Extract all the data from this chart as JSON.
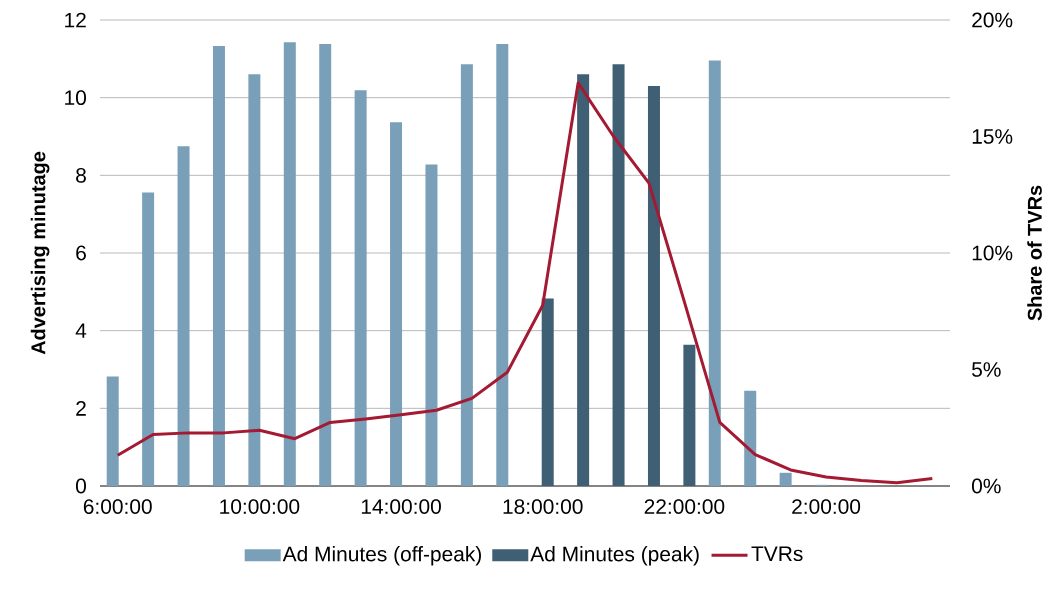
{
  "chart_data": {
    "type": "bar",
    "categories": [
      "6:00:00",
      null,
      null,
      null,
      "10:00:00",
      null,
      null,
      null,
      "14:00:00",
      null,
      null,
      null,
      "18:00:00",
      null,
      null,
      null,
      "22:00:00",
      null,
      null,
      null,
      "2:00:00",
      null,
      null,
      null
    ],
    "series": [
      {
        "name": "Ad Minutes (off-peak)",
        "color": "#7a9fb8",
        "values": [
          2.82,
          7.56,
          8.75,
          11.33,
          10.6,
          11.43,
          11.38,
          10.19,
          9.37,
          8.28,
          10.86,
          11.38,
          null,
          null,
          null,
          null,
          null,
          10.96,
          2.45,
          0.34,
          0.03,
          null,
          null,
          null
        ]
      },
      {
        "name": "Ad Minutes (peak)",
        "color": "#3f5f75",
        "values": [
          null,
          null,
          null,
          null,
          null,
          null,
          null,
          null,
          null,
          null,
          null,
          null,
          4.83,
          10.6,
          10.86,
          10.3,
          3.64,
          null,
          null,
          null,
          null,
          null,
          null,
          null
        ]
      },
      {
        "name": "TVRs",
        "type": "line",
        "axis": "y2",
        "color": "#a31a32",
        "values": [
          1.32,
          2.21,
          2.28,
          2.28,
          2.39,
          2.03,
          2.73,
          2.88,
          3.06,
          3.25,
          3.76,
          4.88,
          7.76,
          17.3,
          15.0,
          13.0,
          7.9,
          2.73,
          1.35,
          0.69,
          0.39,
          0.24,
          0.14,
          0.32
        ]
      }
    ],
    "ylabel": "Advertising minutage",
    "y2label": "Share of TVRs",
    "ylim": [
      0,
      12
    ],
    "yticks": [
      0,
      2,
      4,
      6,
      8,
      10,
      12
    ],
    "y2lim": [
      0,
      20
    ],
    "y2ticks": [
      {
        "value": 0,
        "label": "0%"
      },
      {
        "value": 5,
        "label": "5%"
      },
      {
        "value": 10,
        "label": "10%"
      },
      {
        "value": 15,
        "label": "15%"
      },
      {
        "value": 20,
        "label": "20%"
      }
    ],
    "grid": "y",
    "legend": "bottom"
  }
}
